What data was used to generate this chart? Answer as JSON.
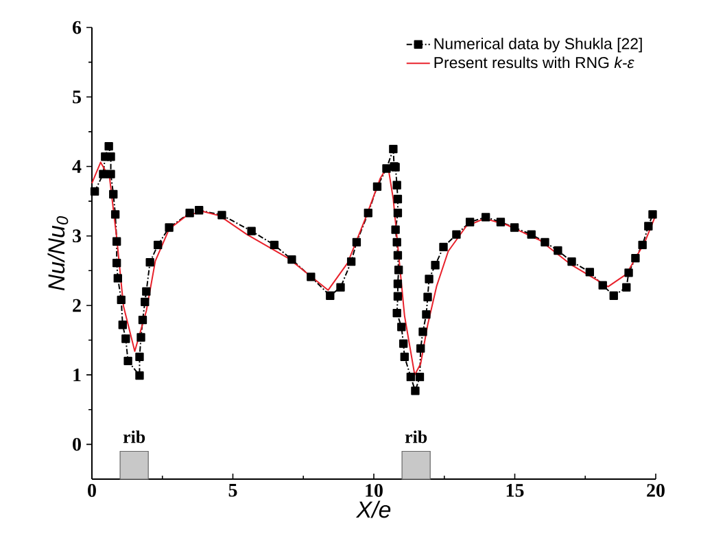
{
  "chart_data": {
    "type": "line",
    "xlabel": "X/e",
    "ylabel": "Nu/Nu$_{0}$",
    "xlim": [
      0,
      20
    ],
    "ylim": [
      -0.5,
      6
    ],
    "xticks": [
      0,
      5,
      10,
      15,
      20
    ],
    "yticks": [
      0,
      1,
      2,
      3,
      4,
      5,
      6
    ],
    "grid": false,
    "legend": "top right",
    "series": [
      {
        "name": "Numerical data by Shukla [22]",
        "color": "#000000",
        "marker": "square",
        "line_style": "dashdot",
        "x": [
          0.1,
          0.4,
          0.47,
          0.6,
          0.67,
          0.67,
          0.76,
          0.83,
          0.88,
          0.88,
          0.92,
          1.04,
          1.09,
          1.2,
          1.28,
          1.69,
          1.69,
          1.74,
          1.8,
          1.88,
          1.93,
          2.06,
          2.34,
          2.74,
          3.47,
          3.8,
          4.61,
          5.66,
          6.47,
          7.09,
          7.77,
          8.45,
          8.82,
          9.2,
          9.39,
          9.8,
          10.12,
          10.45,
          10.69,
          10.72,
          10.77,
          10.82,
          10.85,
          10.85,
          10.77,
          10.82,
          10.85,
          10.88,
          10.85,
          10.85,
          10.82,
          10.98,
          11.05,
          11.09,
          11.31,
          11.47,
          11.63,
          11.66,
          11.74,
          11.86,
          11.91,
          11.96,
          12.18,
          12.47,
          12.93,
          13.41,
          13.97,
          14.5,
          14.99,
          15.59,
          16.07,
          16.53,
          17.02,
          17.66,
          18.12,
          18.51,
          18.96,
          19.04,
          19.28,
          19.53,
          19.74,
          19.89
        ],
        "values": [
          3.64,
          3.89,
          4.14,
          4.29,
          4.14,
          3.89,
          3.6,
          3.31,
          2.92,
          2.61,
          2.39,
          2.08,
          1.72,
          1.52,
          1.2,
          0.99,
          1.26,
          1.54,
          1.79,
          2.05,
          2.2,
          2.62,
          2.87,
          3.12,
          3.33,
          3.37,
          3.3,
          3.07,
          2.87,
          2.66,
          2.41,
          2.14,
          2.26,
          2.63,
          2.91,
          3.33,
          3.71,
          3.97,
          4.25,
          4.0,
          3.99,
          3.73,
          3.53,
          3.33,
          3.09,
          2.91,
          2.72,
          2.51,
          2.31,
          2.13,
          1.89,
          1.69,
          1.45,
          1.26,
          0.97,
          0.77,
          0.97,
          1.38,
          1.62,
          1.87,
          2.12,
          2.38,
          2.58,
          2.84,
          3.02,
          3.2,
          3.27,
          3.2,
          3.12,
          3.02,
          2.91,
          2.79,
          2.63,
          2.48,
          2.29,
          2.14,
          2.26,
          2.47,
          2.68,
          2.87,
          3.14,
          3.31
        ]
      },
      {
        "name": "Present results with RNG *k-ε*",
        "color": "#e8202a",
        "marker": "none",
        "line_style": "solid",
        "x": [
          0,
          0.31,
          0.63,
          0.88,
          1.12,
          1.52,
          1.93,
          2.25,
          2.74,
          3.39,
          3.96,
          4.53,
          5.5,
          6.96,
          8.38,
          9.07,
          9.72,
          10.23,
          10.5,
          10.69,
          11.09,
          11.45,
          11.66,
          11.91,
          12.23,
          12.64,
          13.28,
          13.93,
          14.71,
          15.88,
          17.02,
          18.31,
          18.96,
          19.61,
          19.97
        ],
        "values": [
          3.76,
          4.06,
          3.83,
          2.97,
          1.99,
          1.34,
          1.92,
          2.64,
          3.1,
          3.3,
          3.35,
          3.29,
          3.02,
          2.68,
          2.22,
          2.61,
          3.27,
          3.83,
          4.01,
          3.53,
          1.85,
          1.0,
          1.16,
          1.72,
          2.28,
          2.78,
          3.14,
          3.25,
          3.16,
          2.94,
          2.58,
          2.27,
          2.45,
          2.91,
          3.27
        ]
      }
    ],
    "bands": [
      {
        "axis": "x",
        "from": 1,
        "to": 2,
        "label": "rib",
        "color": "#c8c8c8"
      },
      {
        "axis": "x",
        "from": 11,
        "to": 12,
        "label": "rib",
        "color": "#c8c8c8"
      }
    ]
  }
}
